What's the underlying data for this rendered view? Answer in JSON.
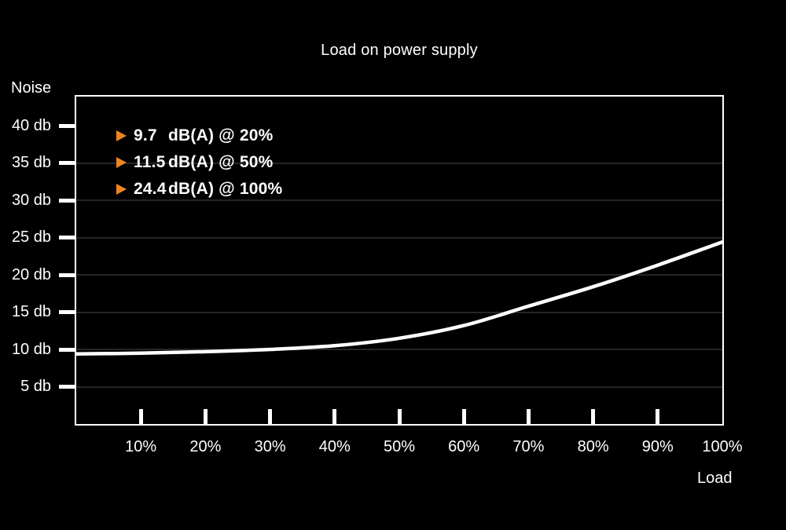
{
  "page": {
    "background": "#000000"
  },
  "chart_data": {
    "type": "line",
    "title": "Load on power supply",
    "ylabel": "Noise",
    "xlabel": "Load",
    "x": [
      0,
      10,
      20,
      30,
      40,
      50,
      60,
      70,
      80,
      90,
      100
    ],
    "y": [
      9.4,
      9.5,
      9.7,
      10.0,
      10.5,
      11.5,
      13.2,
      15.8,
      18.4,
      21.3,
      24.4
    ],
    "xlim": [
      0,
      100
    ],
    "ylim": [
      0,
      43.9
    ],
    "grid": "horizontal",
    "x_ticks": [
      {
        "value": 10,
        "label": "10%",
        "mark": true
      },
      {
        "value": 20,
        "label": "20%",
        "mark": true
      },
      {
        "value": 30,
        "label": "30%",
        "mark": true
      },
      {
        "value": 40,
        "label": "40%",
        "mark": true
      },
      {
        "value": 50,
        "label": "50%",
        "mark": true
      },
      {
        "value": 60,
        "label": "60%",
        "mark": true
      },
      {
        "value": 70,
        "label": "70%",
        "mark": true
      },
      {
        "value": 80,
        "label": "80%",
        "mark": true
      },
      {
        "value": 90,
        "label": "90%",
        "mark": true
      },
      {
        "value": 100,
        "label": "100%",
        "mark": false
      }
    ],
    "y_ticks": [
      {
        "value": 40,
        "label": "40 db",
        "grid": false
      },
      {
        "value": 35,
        "label": "35 db",
        "grid": true
      },
      {
        "value": 30,
        "label": "30 db",
        "grid": true
      },
      {
        "value": 25,
        "label": "25 db",
        "grid": true
      },
      {
        "value": 20,
        "label": "20 db",
        "grid": true
      },
      {
        "value": 15,
        "label": "15 db",
        "grid": true
      },
      {
        "value": 10,
        "label": "10 db",
        "grid": true
      },
      {
        "value": 5,
        "label": "5 db",
        "grid": true
      }
    ],
    "legend_position": "top-left-inside",
    "annotations": [
      {
        "marker": "right-triangle-icon",
        "value": "9.7",
        "text": "dB(A) @ 20%"
      },
      {
        "marker": "right-triangle-icon",
        "value": "11.5",
        "text": "dB(A) @ 50%"
      },
      {
        "marker": "right-triangle-icon",
        "value": "24.4",
        "text": "dB(A) @ 100%"
      }
    ],
    "colors": {
      "background": "#000000",
      "line": "#ffffff",
      "axis": "#ffffff",
      "grid": "#22262a",
      "text": "#ffffff",
      "marker": "#ec8420"
    }
  }
}
